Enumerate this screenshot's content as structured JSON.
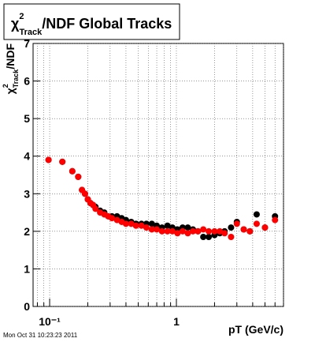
{
  "chart_data": {
    "type": "scatter",
    "title": {
      "symbol": "χ",
      "sup": "2",
      "sub": "Track",
      "rest": "/NDF  Global Tracks"
    },
    "y_label": {
      "symbol": "χ",
      "sup": "2",
      "sub": "Track",
      "rest": "/NDF"
    },
    "x_label": "pT (GeV/c)",
    "timestamp": "Mon Oct 31 10:23:23 2011",
    "log_x": true,
    "grid": true,
    "xlim": [
      0.074,
      7
    ],
    "ylim": [
      0,
      7
    ],
    "xticks": [
      {
        "value": 0.1,
        "label": "10⁻¹"
      },
      1
    ],
    "xminor": [
      0.08,
      0.09,
      0.2,
      0.3,
      0.4,
      0.5,
      0.6,
      0.7,
      0.8,
      0.9,
      2,
      3,
      4,
      5,
      6,
      7
    ],
    "yticks": [
      0,
      1,
      2,
      3,
      4,
      5,
      6,
      7
    ],
    "x": [
      0.098,
      0.126,
      0.151,
      0.168,
      0.18,
      0.19,
      0.2,
      0.21,
      0.22,
      0.23,
      0.25,
      0.27,
      0.29,
      0.31,
      0.34,
      0.37,
      0.4,
      0.44,
      0.48,
      0.53,
      0.58,
      0.64,
      0.7,
      0.77,
      0.85,
      0.93,
      1.02,
      1.12,
      1.23,
      1.35,
      1.48,
      1.63,
      1.8,
      2.0,
      2.2,
      2.4,
      2.7,
      3.0,
      3.4,
      3.8,
      4.3,
      5.0,
      6.0
    ],
    "series": [
      {
        "color": "#000000",
        "values": [
          3.9,
          3.85,
          3.6,
          3.45,
          3.1,
          3.0,
          2.85,
          2.75,
          2.7,
          2.65,
          2.55,
          2.5,
          2.4,
          2.4,
          2.4,
          2.35,
          2.3,
          2.25,
          2.2,
          2.2,
          2.2,
          2.2,
          2.15,
          2.1,
          2.15,
          2.1,
          2.05,
          2.1,
          2.1,
          2.05,
          2.0,
          1.85,
          1.85,
          1.9,
          1.95,
          2.0,
          2.1,
          2.25,
          2.05,
          2.0,
          2.45,
          2.1,
          2.4
        ]
      },
      {
        "color": "#ff0000",
        "values": [
          3.9,
          3.85,
          3.6,
          3.45,
          3.1,
          3.0,
          2.85,
          2.75,
          2.7,
          2.6,
          2.5,
          2.45,
          2.4,
          2.35,
          2.3,
          2.25,
          2.2,
          2.2,
          2.15,
          2.15,
          2.1,
          2.05,
          2.05,
          2.0,
          2.0,
          2.0,
          1.95,
          2.0,
          1.95,
          2.0,
          2.0,
          2.05,
          2.0,
          2.0,
          2.0,
          1.95,
          1.85,
          2.2,
          2.05,
          2.0,
          2.2,
          2.1,
          2.3
        ]
      }
    ]
  }
}
